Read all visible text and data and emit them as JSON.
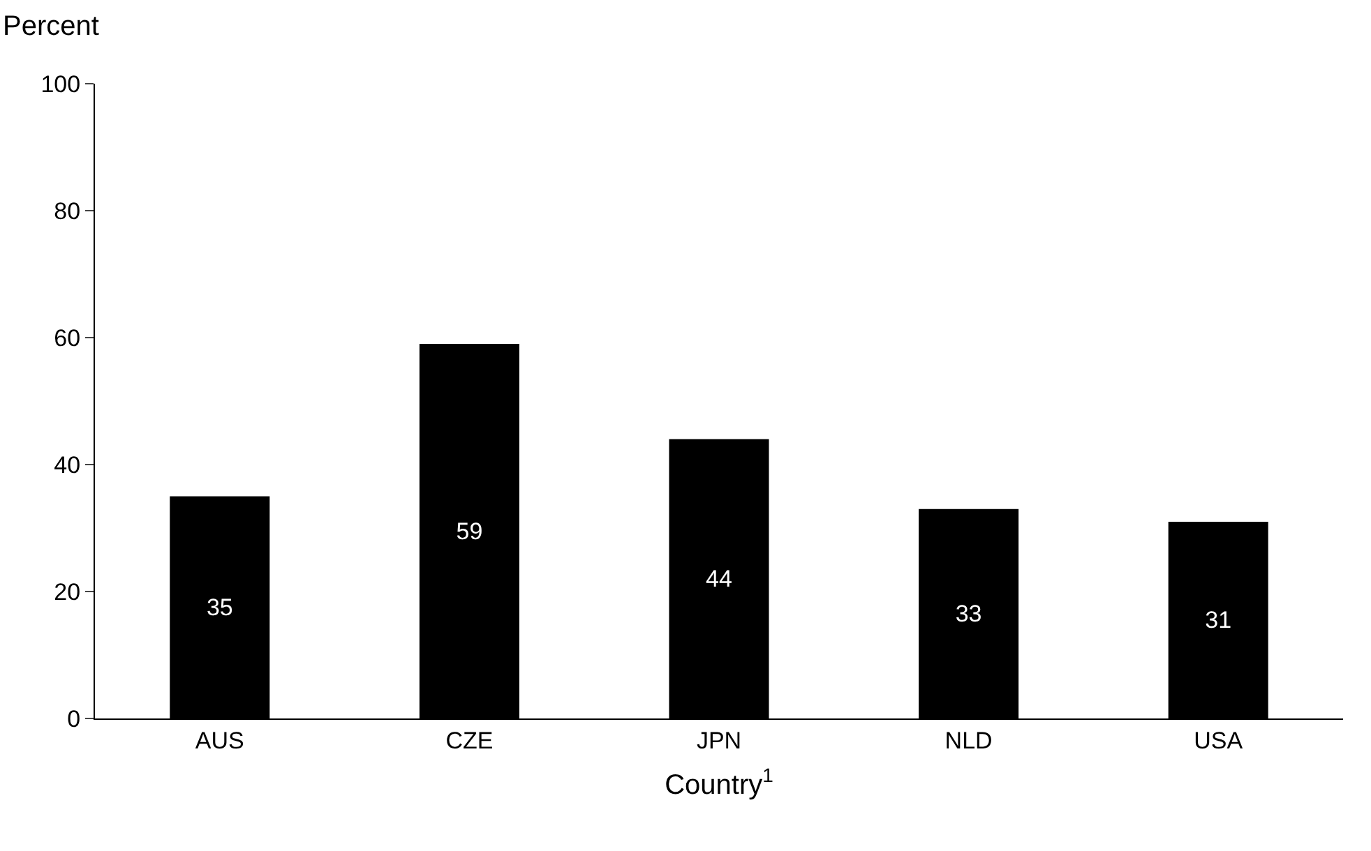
{
  "chart_data": {
    "type": "bar",
    "ylabel": "Percent",
    "xlabel": "Country$^{1}$",
    "categories": [
      "AUS",
      "CZE",
      "JPN",
      "NLD",
      "USA"
    ],
    "values": [
      35,
      59,
      44,
      33,
      31
    ],
    "color": "#000000",
    "ylim": [
      0,
      100
    ],
    "yticks": [
      0,
      20,
      40,
      60,
      80,
      100
    ],
    "legend": false,
    "data_labels": true
  }
}
